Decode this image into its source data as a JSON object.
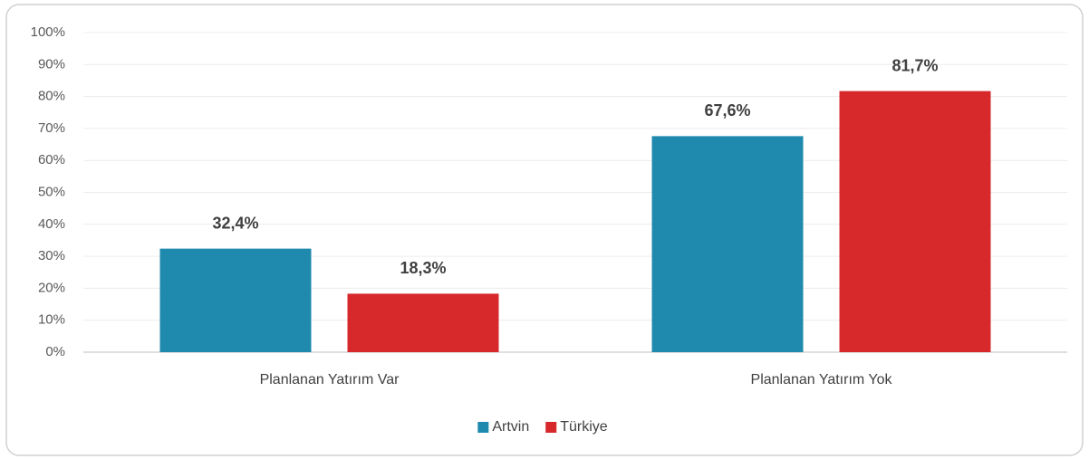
{
  "chart_data": {
    "type": "bar",
    "categories": [
      "Planlanan Yatırım Var",
      "Planlanan Yatırım Yok"
    ],
    "series": [
      {
        "name": "Artvin",
        "color": "#1f8aad",
        "values": [
          32.4,
          67.6
        ],
        "value_labels": [
          "32,4%",
          "67,6%"
        ]
      },
      {
        "name": "Türkiye",
        "color": "#d7282b",
        "values": [
          18.3,
          81.7
        ],
        "value_labels": [
          "18,3%",
          "81,7%"
        ]
      }
    ],
    "ylim": [
      0,
      100
    ],
    "yticks": [
      {
        "value": 0,
        "label": "0%"
      },
      {
        "value": 10,
        "label": "10%"
      },
      {
        "value": 20,
        "label": "20%"
      },
      {
        "value": 30,
        "label": "30%"
      },
      {
        "value": 40,
        "label": "40%"
      },
      {
        "value": 50,
        "label": "50%"
      },
      {
        "value": 60,
        "label": "60%"
      },
      {
        "value": 70,
        "label": "70%"
      },
      {
        "value": 80,
        "label": "80%"
      },
      {
        "value": 90,
        "label": "90%"
      },
      {
        "value": 100,
        "label": "100%"
      }
    ],
    "grid": true,
    "legend": "bottom"
  }
}
